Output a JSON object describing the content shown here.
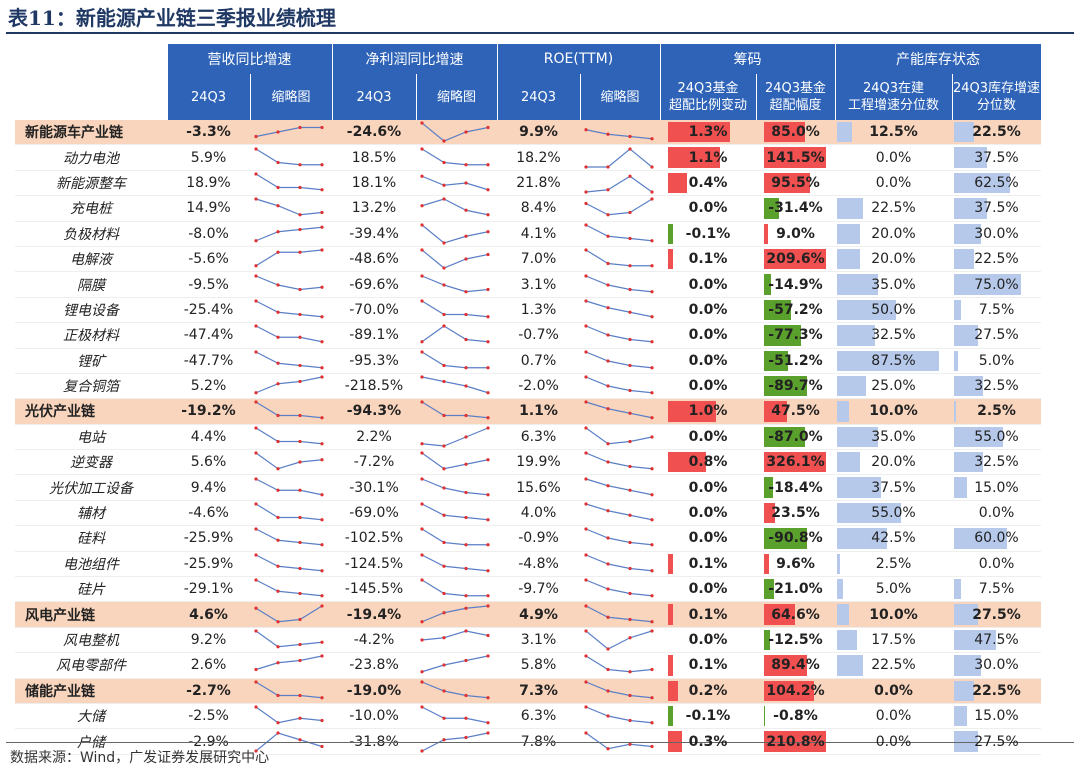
{
  "title": "表11：新能源产业链三季报业绩梳理",
  "source": "数据来源：Wind，广发证券发展研究中心",
  "header": {
    "top": [
      "营收同比增速",
      "净利润同比增速",
      "ROE(TTM)",
      "筹码",
      "产能库存状态"
    ],
    "sub": [
      "24Q3",
      "缩略图",
      "24Q3",
      "缩略图",
      "24Q3",
      "缩略图",
      "24Q3基金\n超配比例变动",
      "24Q3基金\n超配幅度",
      "24Q3在建\n工程增速分位数",
      "24Q3库存增速\n分位数"
    ]
  },
  "colors": {
    "header_bg": "#2e63b7",
    "group_bg": "#fad5bd",
    "pos_bar": "#f05050",
    "neg_bar": "#5aa02c",
    "pct_bar": "#b6c9ea",
    "spark_line": "#5b7fc7",
    "spark_dot": "#e03030"
  },
  "rows": [
    {
      "name": "新能源车产业链",
      "group": true,
      "rev": "-3.3%",
      "np": "-24.6%",
      "roe": "9.9%",
      "chg": "1.3%",
      "chg_v": 1.3,
      "ow": "85.0%",
      "ow_v": 85.0,
      "cip": "12.5%",
      "cip_v": 12.5,
      "inv": "22.5%",
      "inv_v": 22.5,
      "s1": [
        6,
        4,
        2,
        2
      ],
      "s2": [
        0,
        8,
        4,
        2
      ],
      "s3": [
        3,
        5,
        6,
        7
      ]
    },
    {
      "name": "动力电池",
      "group": false,
      "rev": "5.9%",
      "np": "18.5%",
      "roe": "18.2%",
      "chg": "1.1%",
      "chg_v": 1.1,
      "ow": "141.5%",
      "ow_v": 141.5,
      "cip": "0.0%",
      "cip_v": 0,
      "inv": "37.5%",
      "inv_v": 37.5,
      "s1": [
        0,
        6,
        7,
        7
      ],
      "s2": [
        0,
        6,
        7,
        7
      ],
      "s3": [
        8,
        8,
        0,
        8
      ]
    },
    {
      "name": "新能源整车",
      "group": false,
      "rev": "18.9%",
      "np": "18.1%",
      "roe": "21.8%",
      "chg": "0.4%",
      "chg_v": 0.4,
      "ow": "95.5%",
      "ow_v": 95.5,
      "cip": "0.0%",
      "cip_v": 0,
      "inv": "62.5%",
      "inv_v": 62.5,
      "s1": [
        0,
        6,
        6,
        7
      ],
      "s2": [
        1,
        5,
        4,
        7
      ],
      "s3": [
        8,
        7,
        1,
        8
      ]
    },
    {
      "name": "充电桩",
      "group": false,
      "rev": "14.9%",
      "np": "13.2%",
      "roe": "8.4%",
      "chg": "0.0%",
      "chg_v": 0,
      "ow": "-31.4%",
      "ow_v": -31.4,
      "cip": "22.5%",
      "cip_v": 22.5,
      "inv": "37.5%",
      "inv_v": 37.5,
      "s1": [
        0,
        3,
        7,
        6
      ],
      "s2": [
        3,
        0,
        5,
        7
      ],
      "s3": [
        2,
        7,
        6,
        0
      ]
    },
    {
      "name": "负极材料",
      "group": false,
      "rev": "-8.0%",
      "np": "-39.4%",
      "roe": "4.1%",
      "chg": "-0.1%",
      "chg_v": -0.1,
      "ow": "9.0%",
      "ow_v": 9.0,
      "cip": "20.0%",
      "cip_v": 20,
      "inv": "30.0%",
      "inv_v": 30,
      "s1": [
        7,
        3,
        2,
        1
      ],
      "s2": [
        0,
        8,
        5,
        3
      ],
      "s3": [
        0,
        5,
        6,
        7
      ]
    },
    {
      "name": "电解液",
      "group": false,
      "rev": "-5.6%",
      "np": "-48.6%",
      "roe": "7.0%",
      "chg": "0.1%",
      "chg_v": 0.1,
      "ow": "209.6%",
      "ow_v": 209.6,
      "cip": "20.0%",
      "cip_v": 20,
      "inv": "22.5%",
      "inv_v": 22.5,
      "s1": [
        7,
        1,
        1,
        0
      ],
      "s2": [
        0,
        8,
        4,
        2
      ],
      "s3": [
        0,
        6,
        7,
        7
      ]
    },
    {
      "name": "隔膜",
      "group": false,
      "rev": "-9.5%",
      "np": "-69.6%",
      "roe": "3.1%",
      "chg": "0.0%",
      "chg_v": 0,
      "ow": "-14.9%",
      "ow_v": -14.9,
      "cip": "35.0%",
      "cip_v": 35,
      "inv": "75.0%",
      "inv_v": 75,
      "s1": [
        0,
        4,
        6,
        5
      ],
      "s2": [
        0,
        4,
        7,
        6
      ],
      "s3": [
        0,
        4,
        6,
        7
      ]
    },
    {
      "name": "锂电设备",
      "group": false,
      "rev": "-25.4%",
      "np": "-70.0%",
      "roe": "1.3%",
      "chg": "0.0%",
      "chg_v": 0,
      "ow": "-57.2%",
      "ow_v": -57.2,
      "cip": "50.0%",
      "cip_v": 50,
      "inv": "7.5%",
      "inv_v": 7.5,
      "s1": [
        0,
        5,
        6,
        7
      ],
      "s2": [
        0,
        6,
        6,
        7
      ],
      "s3": [
        0,
        3,
        5,
        7
      ]
    },
    {
      "name": "正极材料",
      "group": false,
      "rev": "-47.4%",
      "np": "-89.1%",
      "roe": "-0.7%",
      "chg": "0.0%",
      "chg_v": 0,
      "ow": "-77.3%",
      "ow_v": -77.3,
      "cip": "32.5%",
      "cip_v": 32.5,
      "inv": "27.5%",
      "inv_v": 27.5,
      "s1": [
        0,
        5,
        5,
        7
      ],
      "s2": [
        7,
        0,
        6,
        7
      ],
      "s3": [
        0,
        4,
        6,
        7
      ]
    },
    {
      "name": "锂矿",
      "group": false,
      "rev": "-47.7%",
      "np": "-95.3%",
      "roe": "0.7%",
      "chg": "0.0%",
      "chg_v": 0,
      "ow": "-51.2%",
      "ow_v": -51.2,
      "cip": "87.5%",
      "cip_v": 87.5,
      "inv": "5.0%",
      "inv_v": 5,
      "s1": [
        0,
        5,
        6,
        7
      ],
      "s2": [
        0,
        6,
        7,
        7
      ],
      "s3": [
        0,
        4,
        6,
        7
      ]
    },
    {
      "name": "复合铜箔",
      "group": false,
      "rev": "5.2%",
      "np": "-218.5%",
      "roe": "-2.0%",
      "chg": "0.0%",
      "chg_v": 0,
      "ow": "-89.7%",
      "ow_v": -89.7,
      "cip": "25.0%",
      "cip_v": 25,
      "inv": "32.5%",
      "inv_v": 32.5,
      "s1": [
        7,
        3,
        2,
        0
      ],
      "s2": [
        0,
        2,
        4,
        7
      ],
      "s3": [
        0,
        4,
        6,
        7
      ]
    },
    {
      "name": "光伏产业链",
      "group": true,
      "rev": "-19.2%",
      "np": "-94.3%",
      "roe": "1.1%",
      "chg": "1.0%",
      "chg_v": 1.0,
      "ow": "47.5%",
      "ow_v": 47.5,
      "cip": "10.0%",
      "cip_v": 10,
      "inv": "2.5%",
      "inv_v": 2.5,
      "s1": [
        0,
        6,
        6,
        7
      ],
      "s2": [
        0,
        6,
        6,
        7
      ],
      "s3": [
        0,
        3,
        5,
        7
      ]
    },
    {
      "name": "电站",
      "group": false,
      "rev": "4.4%",
      "np": "2.2%",
      "roe": "6.3%",
      "chg": "0.0%",
      "chg_v": 0,
      "ow": "-87.0%",
      "ow_v": -87.0,
      "cip": "35.0%",
      "cip_v": 35,
      "inv": "55.0%",
      "inv_v": 55,
      "s1": [
        0,
        6,
        6,
        7
      ],
      "s2": [
        7,
        8,
        4,
        0
      ],
      "s3": [
        0,
        7,
        6,
        4
      ]
    },
    {
      "name": "逆变器",
      "group": false,
      "rev": "5.6%",
      "np": "-7.2%",
      "roe": "19.9%",
      "chg": "0.8%",
      "chg_v": 0.8,
      "ow": "326.1%",
      "ow_v": 326.1,
      "cip": "20.0%",
      "cip_v": 20,
      "inv": "32.5%",
      "inv_v": 32.5,
      "s1": [
        0,
        7,
        4,
        3
      ],
      "s2": [
        0,
        7,
        5,
        3
      ],
      "s3": [
        0,
        4,
        6,
        7
      ]
    },
    {
      "name": "光伏加工设备",
      "group": false,
      "rev": "9.4%",
      "np": "-30.1%",
      "roe": "15.6%",
      "chg": "0.0%",
      "chg_v": 0,
      "ow": "-18.4%",
      "ow_v": -18.4,
      "cip": "37.5%",
      "cip_v": 37.5,
      "inv": "15.0%",
      "inv_v": 15,
      "s1": [
        0,
        5,
        5,
        7
      ],
      "s2": [
        0,
        4,
        6,
        7
      ],
      "s3": [
        0,
        3,
        5,
        7
      ]
    },
    {
      "name": "辅材",
      "group": false,
      "rev": "-4.6%",
      "np": "-69.0%",
      "roe": "4.0%",
      "chg": "0.0%",
      "chg_v": 0,
      "ow": "23.5%",
      "ow_v": 23.5,
      "cip": "55.0%",
      "cip_v": 55,
      "inv": "0.0%",
      "inv_v": 0,
      "s1": [
        0,
        6,
        6,
        7
      ],
      "s2": [
        0,
        5,
        6,
        7
      ],
      "s3": [
        0,
        3,
        5,
        7
      ]
    },
    {
      "name": "硅料",
      "group": false,
      "rev": "-25.9%",
      "np": "-102.5%",
      "roe": "-0.9%",
      "chg": "0.0%",
      "chg_v": 0,
      "ow": "-90.8%",
      "ow_v": -90.8,
      "cip": "42.5%",
      "cip_v": 42.5,
      "inv": "60.0%",
      "inv_v": 60,
      "s1": [
        0,
        5,
        6,
        7
      ],
      "s2": [
        0,
        6,
        7,
        7
      ],
      "s3": [
        0,
        4,
        6,
        7
      ]
    },
    {
      "name": "电池组件",
      "group": false,
      "rev": "-25.9%",
      "np": "-124.5%",
      "roe": "-4.8%",
      "chg": "0.1%",
      "chg_v": 0.1,
      "ow": "9.6%",
      "ow_v": 9.6,
      "cip": "2.5%",
      "cip_v": 2.5,
      "inv": "0.0%",
      "inv_v": 0,
      "s1": [
        0,
        5,
        6,
        7
      ],
      "s2": [
        0,
        5,
        6,
        7
      ],
      "s3": [
        0,
        4,
        6,
        7
      ]
    },
    {
      "name": "硅片",
      "group": false,
      "rev": "-29.1%",
      "np": "-145.5%",
      "roe": "-9.7%",
      "chg": "0.0%",
      "chg_v": 0,
      "ow": "-21.0%",
      "ow_v": -21.0,
      "cip": "5.0%",
      "cip_v": 5,
      "inv": "7.5%",
      "inv_v": 7.5,
      "s1": [
        0,
        5,
        6,
        7
      ],
      "s2": [
        0,
        6,
        7,
        7
      ],
      "s3": [
        0,
        4,
        6,
        7
      ]
    },
    {
      "name": "风电产业链",
      "group": true,
      "rev": "4.6%",
      "np": "-19.4%",
      "roe": "4.9%",
      "chg": "0.1%",
      "chg_v": 0.1,
      "ow": "64.6%",
      "ow_v": 64.6,
      "cip": "10.0%",
      "cip_v": 10,
      "inv": "27.5%",
      "inv_v": 27.5,
      "s1": [
        1,
        7,
        6,
        0
      ],
      "s2": [
        7,
        3,
        1,
        0
      ],
      "s3": [
        0,
        5,
        6,
        7
      ]
    },
    {
      "name": "风电整机",
      "group": false,
      "rev": "9.2%",
      "np": "-4.2%",
      "roe": "3.1%",
      "chg": "0.0%",
      "chg_v": 0,
      "ow": "-12.5%",
      "ow_v": -12.5,
      "cip": "17.5%",
      "cip_v": 17.5,
      "inv": "47.5%",
      "inv_v": 47.5,
      "s1": [
        0,
        7,
        6,
        5
      ],
      "s2": [
        4,
        3,
        0,
        2
      ],
      "s3": [
        0,
        8,
        3,
        0
      ]
    },
    {
      "name": "风电零部件",
      "group": false,
      "rev": "2.6%",
      "np": "-23.8%",
      "roe": "5.8%",
      "chg": "0.1%",
      "chg_v": 0.1,
      "ow": "89.4%",
      "ow_v": 89.4,
      "cip": "22.5%",
      "cip_v": 22.5,
      "inv": "30.0%",
      "inv_v": 30,
      "s1": [
        6,
        3,
        2,
        0
      ],
      "s2": [
        7,
        4,
        2,
        0
      ],
      "s3": [
        0,
        6,
        7,
        6
      ]
    },
    {
      "name": "储能产业链",
      "group": true,
      "rev": "-2.7%",
      "np": "-19.0%",
      "roe": "7.3%",
      "chg": "0.2%",
      "chg_v": 0.2,
      "ow": "104.2%",
      "ow_v": 104.2,
      "cip": "0.0%",
      "cip_v": 0,
      "inv": "22.5%",
      "inv_v": 22.5,
      "s1": [
        0,
        6,
        6,
        7
      ],
      "s2": [
        0,
        4,
        6,
        7
      ],
      "s3": [
        0,
        4,
        6,
        7
      ]
    },
    {
      "name": "大储",
      "group": false,
      "rev": "-2.5%",
      "np": "-10.0%",
      "roe": "6.3%",
      "chg": "-0.1%",
      "chg_v": -0.1,
      "ow": "-0.8%",
      "ow_v": -0.8,
      "cip": "0.0%",
      "cip_v": 0,
      "inv": "15.0%",
      "inv_v": 15,
      "s1": [
        0,
        7,
        5,
        6
      ],
      "s2": [
        0,
        5,
        5,
        7
      ],
      "s3": [
        0,
        4,
        6,
        7
      ]
    },
    {
      "name": "户储",
      "group": false,
      "rev": "-2.9%",
      "np": "-31.8%",
      "roe": "7.8%",
      "chg": "0.3%",
      "chg_v": 0.3,
      "ow": "210.8%",
      "ow_v": 210.8,
      "cip": "0.0%",
      "cip_v": 0,
      "inv": "27.5%",
      "inv_v": 27.5,
      "s1": [
        8,
        0,
        3,
        6
      ],
      "s2": [
        8,
        3,
        2,
        0
      ],
      "s3": [
        0,
        7,
        5,
        6
      ]
    }
  ]
}
